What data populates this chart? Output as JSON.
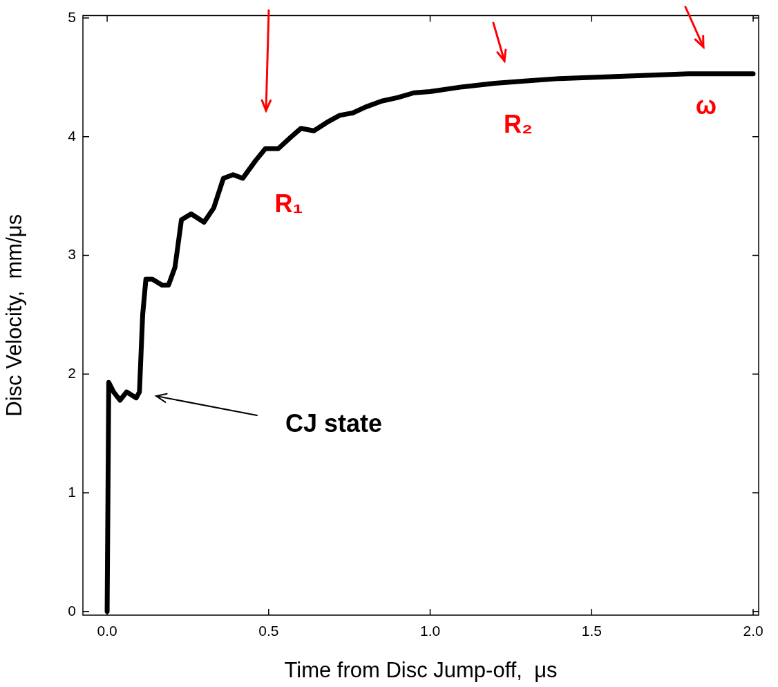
{
  "chart_data": {
    "type": "line",
    "xlabel": "Time from Disc Jump-off,  μs",
    "ylabel": "Disc Velocity,  mm/μs",
    "x": [
      0,
      0.005,
      0.02,
      0.04,
      0.06,
      0.09,
      0.1,
      0.11,
      0.12,
      0.14,
      0.17,
      0.19,
      0.21,
      0.23,
      0.26,
      0.3,
      0.33,
      0.36,
      0.39,
      0.42,
      0.46,
      0.49,
      0.53,
      0.57,
      0.6,
      0.64,
      0.68,
      0.72,
      0.76,
      0.8,
      0.85,
      0.9,
      0.95,
      1.0,
      1.1,
      1.2,
      1.3,
      1.4,
      1.5,
      1.6,
      1.7,
      1.8,
      1.9,
      2.0
    ],
    "series": [
      {
        "color": "#000000",
        "values": [
          0,
          1.93,
          1.85,
          1.78,
          1.85,
          1.8,
          1.85,
          2.5,
          2.8,
          2.8,
          2.75,
          2.75,
          2.9,
          3.3,
          3.35,
          3.28,
          3.4,
          3.65,
          3.68,
          3.65,
          3.8,
          3.9,
          3.9,
          4.0,
          4.07,
          4.05,
          4.12,
          4.18,
          4.2,
          4.25,
          4.3,
          4.33,
          4.37,
          4.38,
          4.42,
          4.45,
          4.47,
          4.49,
          4.5,
          4.51,
          4.52,
          4.53,
          4.53,
          4.53
        ]
      }
    ],
    "xlim": [
      -0.075,
      2.017
    ],
    "ylim": [
      -0.03,
      5.02
    ],
    "xticks": [
      {
        "value": 0,
        "label": "0.0"
      },
      {
        "value": 0.5,
        "label": "0.5"
      },
      {
        "value": 1,
        "label": "1.0"
      },
      {
        "value": 1.5,
        "label": "1.5"
      },
      {
        "value": 2,
        "label": "2.0"
      }
    ],
    "yticks": [
      0,
      1,
      2,
      3,
      4,
      5
    ],
    "marker": "none",
    "legend": false,
    "annotations": [
      "CJ state",
      "R₁",
      "R₂",
      "ω"
    ]
  }
}
